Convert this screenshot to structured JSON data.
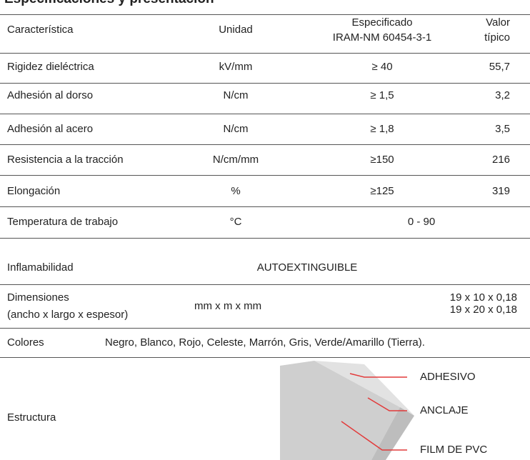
{
  "title": "Especificaciones y presentación",
  "table": {
    "header": [
      "Característica",
      "Unidad",
      [
        "Especificado",
        "IRAM-NM 60454-3-1"
      ],
      [
        "Valor",
        "típico"
      ]
    ],
    "rows": [
      [
        "Rigidez dieléctrica",
        "kV/mm",
        "≥ 40",
        "55,7"
      ],
      [
        "Adhesión al dorso",
        "N/cm",
        "≥ 1,5",
        "3,2"
      ],
      [
        "Adhesión al acero",
        "N/cm",
        "≥ 1,8",
        "3,5"
      ],
      [
        "Resistencia a la tracción",
        "N/cm/mm",
        "≥150",
        "216"
      ],
      [
        "Elongación",
        "%",
        "≥125",
        "319"
      ],
      [
        "Temperatura de trabajo",
        "°C",
        "0 - 90"
      ],
      [
        "Inflamabilidad",
        "AUTOEXTINGUIBLE"
      ],
      [
        [
          "Dimensiones",
          "(ancho x largo x espesor)"
        ],
        "mm x m x mm",
        [
          "19 x 10 x 0,18",
          "19 x 20 x 0,18"
        ]
      ],
      [
        "Colores",
        "Negro, Blanco, Rojo, Celeste, Marrón, Gris, Verde/Amarillo (Tierra)."
      ]
    ]
  },
  "structure": {
    "label": "Estructura",
    "layers": [
      "ADHESIVO",
      "ANCLAJE",
      "FILM DE PVC"
    ]
  }
}
